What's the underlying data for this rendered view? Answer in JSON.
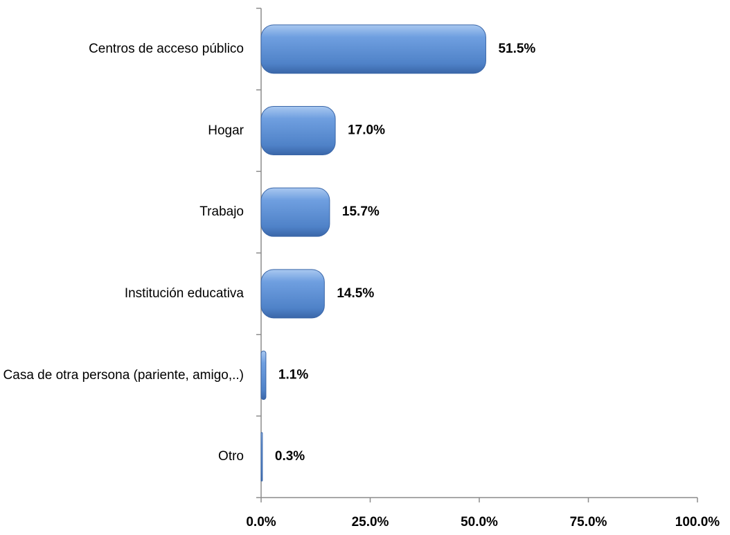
{
  "chart_data": {
    "type": "bar",
    "orientation": "horizontal",
    "categories": [
      "Centros de acceso público",
      "Hogar",
      "Trabajo",
      "Institución educativa",
      "Casa de otra persona (pariente, amigo,..)",
      "Otro"
    ],
    "values": [
      51.5,
      17.0,
      15.7,
      14.5,
      1.1,
      0.3
    ],
    "value_labels": [
      "51.5%",
      "17.0%",
      "15.7%",
      "14.5%",
      "1.1%",
      "0.3%"
    ],
    "color": "#5b8fd6",
    "xlim": [
      0,
      100
    ],
    "xticks": [
      {
        "value": 0,
        "label": "0.0%"
      },
      {
        "value": 25,
        "label": "25.0%"
      },
      {
        "value": 50,
        "label": "50.0%"
      },
      {
        "value": 75,
        "label": "75.0%"
      },
      {
        "value": 100,
        "label": "100.0%"
      }
    ],
    "grid": false
  }
}
